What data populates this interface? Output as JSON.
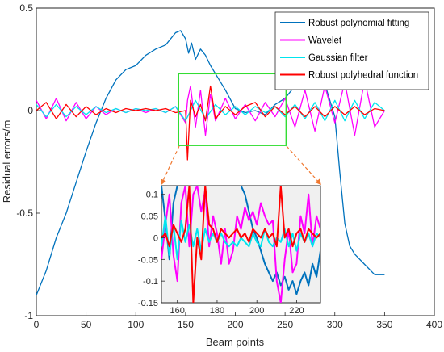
{
  "chart_data": [
    {
      "type": "line",
      "xlabel": "Beam points",
      "ylabel": "Residual errors/m",
      "xlim": [
        0,
        400
      ],
      "ylim": [
        -1,
        0.5
      ],
      "xticks": [
        "0",
        "50",
        "100",
        "150",
        "200",
        "250",
        "300",
        "350",
        "400"
      ],
      "yticks": [
        "0.5",
        "0",
        "-0.5",
        "-1"
      ],
      "legend_position": "top-right",
      "grid": false,
      "zoom_box": {
        "x": [
          143,
          251
        ],
        "y": [
          -0.17,
          0.18
        ],
        "color": "#33dd33"
      },
      "series": [
        {
          "name": "Robust polynomial fitting",
          "color": "#0072bd",
          "x": [
            0,
            10,
            20,
            30,
            40,
            50,
            60,
            70,
            80,
            90,
            100,
            110,
            120,
            130,
            140,
            145,
            150,
            153,
            156,
            160,
            165,
            170,
            175,
            180,
            190,
            200,
            210,
            220,
            230,
            240,
            250,
            260,
            270,
            280,
            290,
            300,
            305,
            310,
            315,
            320,
            330,
            340,
            350
          ],
          "y": [
            -0.9,
            -0.78,
            -0.62,
            -0.5,
            -0.35,
            -0.2,
            -0.06,
            0.06,
            0.15,
            0.2,
            0.22,
            0.27,
            0.3,
            0.32,
            0.38,
            0.39,
            0.35,
            0.28,
            0.33,
            0.25,
            0.3,
            0.27,
            0.22,
            0.18,
            0.1,
            0.01,
            -0.01,
            0.0,
            -0.02,
            0.03,
            0.06,
            0.12,
            0.12,
            0.14,
            0.13,
            -0.03,
            -0.3,
            -0.55,
            -0.66,
            -0.7,
            -0.75,
            -0.8,
            -0.8
          ]
        },
        {
          "name": "Wavelet",
          "color": "#ff00ff",
          "x": [
            0,
            10,
            20,
            30,
            40,
            50,
            60,
            70,
            80,
            90,
            100,
            110,
            120,
            130,
            140,
            150,
            152,
            155,
            160,
            165,
            170,
            175,
            180,
            190,
            200,
            210,
            220,
            230,
            240,
            250,
            260,
            270,
            280,
            290,
            300,
            310,
            320,
            330,
            340,
            350
          ],
          "y": [
            0.05,
            -0.04,
            0.06,
            -0.05,
            0.04,
            -0.04,
            0.02,
            -0.02,
            0.01,
            -0.01,
            0.01,
            -0.01,
            0.01,
            -0.01,
            0.02,
            -0.06,
            0.05,
            0.12,
            -0.08,
            0.1,
            -0.12,
            0.08,
            -0.05,
            0.06,
            -0.04,
            0.03,
            -0.05,
            0.04,
            -0.03,
            0.06,
            -0.08,
            0.1,
            -0.1,
            0.12,
            -0.06,
            0.14,
            -0.12,
            0.15,
            -0.08,
            0.0
          ]
        },
        {
          "name": "Gaussian filter",
          "color": "#00e5ee",
          "x": [
            0,
            10,
            20,
            30,
            40,
            50,
            60,
            70,
            80,
            90,
            100,
            110,
            120,
            130,
            140,
            150,
            160,
            170,
            180,
            190,
            200,
            210,
            220,
            230,
            240,
            250,
            260,
            270,
            280,
            290,
            300,
            310,
            320,
            330,
            340,
            350
          ],
          "y": [
            0.03,
            -0.03,
            0.03,
            -0.03,
            0.02,
            -0.02,
            0.02,
            -0.01,
            0.01,
            -0.01,
            0.01,
            0.0,
            0.01,
            -0.01,
            0.02,
            -0.05,
            0.05,
            -0.04,
            0.03,
            -0.02,
            0.02,
            -0.02,
            0.02,
            -0.01,
            0.02,
            -0.03,
            0.03,
            -0.04,
            0.04,
            -0.05,
            0.05,
            -0.05,
            0.05,
            -0.04,
            0.04,
            0.0
          ]
        },
        {
          "name": "Robust polyhedral function",
          "color": "#ff0000",
          "x": [
            0,
            10,
            20,
            30,
            40,
            50,
            60,
            70,
            80,
            90,
            100,
            110,
            120,
            130,
            140,
            150,
            152,
            155,
            160,
            165,
            170,
            175,
            180,
            190,
            200,
            210,
            220,
            230,
            240,
            250,
            260,
            270,
            280,
            290,
            300,
            310,
            320,
            330,
            340,
            350
          ],
          "y": [
            0.0,
            0.04,
            -0.04,
            0.03,
            -0.03,
            0.02,
            -0.02,
            0.01,
            -0.01,
            0.01,
            0.0,
            0.01,
            0.0,
            0.01,
            -0.01,
            0.0,
            -0.24,
            0.05,
            -0.03,
            0.03,
            -0.05,
            0.12,
            -0.04,
            0.02,
            -0.02,
            0.02,
            0.04,
            -0.03,
            0.02,
            -0.02,
            0.02,
            -0.03,
            0.02,
            -0.03,
            0.02,
            -0.02,
            0.02,
            -0.02,
            0.01,
            0.0
          ]
        }
      ]
    },
    {
      "type": "line",
      "title": "",
      "xlim": [
        152,
        232
      ],
      "ylim": [
        -0.15,
        0.12
      ],
      "xticks": [
        "160",
        "180",
        "200",
        "220"
      ],
      "yticks": [
        "0.1",
        "0.05",
        "0",
        "-0.05",
        "-0.1",
        "-0.15"
      ],
      "background": "#f0f0f0",
      "series": [
        {
          "name": "Robust polynomial fitting",
          "color": "#0072bd",
          "x": [
            152,
            154,
            156,
            158,
            160,
            162,
            164,
            166,
            168,
            170,
            172,
            174,
            176,
            178,
            180,
            182,
            184,
            186,
            188,
            190,
            192,
            194,
            196,
            198,
            200,
            202,
            204,
            206,
            208,
            210,
            212,
            214,
            216,
            218,
            220,
            222,
            224,
            226,
            228,
            230,
            232
          ],
          "y": [
            0.12,
            0.04,
            -0.05,
            0.08,
            0.12,
            0.12,
            0.12,
            0.12,
            0.12,
            0.12,
            0.12,
            0.12,
            0.12,
            0.12,
            0.12,
            0.12,
            0.12,
            0.12,
            0.12,
            0.12,
            0.12,
            0.1,
            0.06,
            0.02,
            0.0,
            -0.03,
            -0.06,
            -0.08,
            -0.1,
            -0.08,
            -0.11,
            -0.09,
            -0.12,
            -0.1,
            -0.13,
            -0.1,
            -0.08,
            -0.11,
            -0.06,
            -0.09,
            -0.03
          ]
        },
        {
          "name": "Wavelet",
          "color": "#ff00ff",
          "x": [
            152,
            154,
            156,
            158,
            160,
            162,
            164,
            166,
            168,
            170,
            172,
            174,
            176,
            178,
            180,
            182,
            184,
            186,
            188,
            190,
            192,
            194,
            196,
            198,
            200,
            202,
            204,
            206,
            208,
            210,
            212,
            214,
            216,
            218,
            220,
            222,
            224,
            226,
            228,
            230,
            232
          ],
          "y": [
            -0.05,
            0.03,
            0.1,
            -0.04,
            -0.1,
            0.08,
            0.12,
            -0.02,
            0.1,
            0.12,
            0.06,
            0.11,
            -0.02,
            0.05,
            0.01,
            -0.06,
            0.02,
            -0.06,
            -0.03,
            0.05,
            0.02,
            0.07,
            0.04,
            0.06,
            0.03,
            0.08,
            0.05,
            0.03,
            0.04,
            -0.1,
            -0.15,
            -0.05,
            0.02,
            -0.08,
            -0.06,
            0.05,
            0.01,
            0.1,
            -0.02,
            0.05,
            0.02
          ]
        },
        {
          "name": "Gaussian filter",
          "color": "#00e5ee",
          "x": [
            152,
            154,
            156,
            158,
            160,
            162,
            164,
            166,
            168,
            170,
            172,
            174,
            176,
            178,
            180,
            182,
            184,
            186,
            188,
            190,
            192,
            194,
            196,
            198,
            200,
            202,
            204,
            206,
            208,
            210,
            212,
            214,
            216,
            218,
            220,
            222,
            224,
            226,
            228,
            230,
            232
          ],
          "y": [
            -0.02,
            0.05,
            -0.04,
            0.03,
            -0.05,
            0.04,
            -0.01,
            0.03,
            -0.02,
            0.02,
            -0.03,
            0.02,
            -0.01,
            0.01,
            -0.01,
            0.01,
            -0.01,
            -0.02,
            -0.01,
            -0.02,
            0.0,
            -0.01,
            -0.02,
            0.01,
            -0.01,
            -0.02,
            0.02,
            -0.01,
            -0.02,
            0.0,
            -0.01,
            0.02,
            -0.02,
            0.01,
            -0.03,
            0.01,
            -0.01,
            0.01,
            -0.02,
            0.01,
            0.0
          ]
        },
        {
          "name": "Robust polyhedral function",
          "color": "#ff0000",
          "x": [
            152,
            154,
            156,
            158,
            160,
            162,
            164,
            166,
            168,
            170,
            172,
            174,
            176,
            178,
            180,
            182,
            184,
            186,
            188,
            190,
            192,
            194,
            196,
            198,
            200,
            202,
            204,
            206,
            208,
            210,
            212,
            214,
            216,
            218,
            220,
            222,
            224,
            226,
            228,
            230,
            232
          ],
          "y": [
            0.0,
            0.01,
            -0.02,
            0.03,
            0.01,
            -0.01,
            0.02,
            0.12,
            -0.15,
            0.0,
            -0.05,
            0.12,
            0.03,
            0.02,
            -0.01,
            0.02,
            0.01,
            0.0,
            0.01,
            0.02,
            0.0,
            0.01,
            -0.01,
            0.02,
            0.01,
            0.0,
            0.02,
            0.0,
            0.01,
            -0.02,
            0.12,
            0.0,
            0.02,
            -0.02,
            0.01,
            0.02,
            -0.01,
            0.02,
            0.01,
            0.0,
            0.01
          ]
        }
      ]
    }
  ]
}
